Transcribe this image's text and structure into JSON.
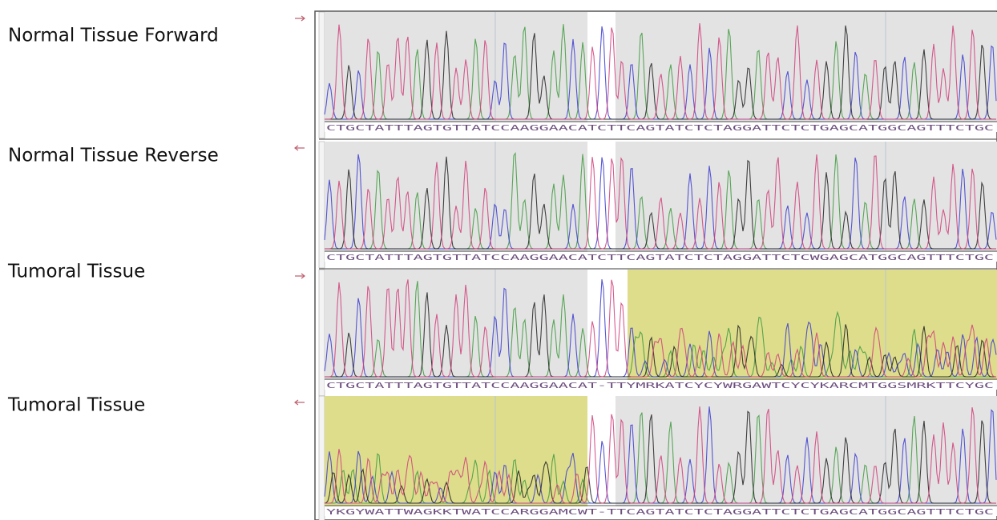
{
  "tracks": [
    {
      "label": "Normal Tissue Forward",
      "sequence": "CTGCTATTTAGTGTTATCCAAGGAACATCTTCAGTATCTCTAGGATTCTCTGAGCATGGCAGTTTCTGC"
    },
    {
      "label": "Normal Tissue Reverse",
      "sequence": "CTGCTATTTAGTGTTATCCAAGGAACATCTTCAGTATCTCTAGGATTCTCWGAGCATGGCAGTTTCTGC"
    },
    {
      "label": "Tumoral Tissue",
      "sequence": "CTGCTATTTAGTGTTATCCAAGGAACAT-TTYMRKATCYCYWRGAWTCYCYKARCMTGGSMRKTTCYGC"
    },
    {
      "label": "Tumoral Tissue",
      "sequence": "YKGYWATTWAGKKTWATCCARGGAMCWT-TTCAGTATCTCTAGGATTCTCTGAGCATGGCAGTTTCTGC"
    }
  ]
}
